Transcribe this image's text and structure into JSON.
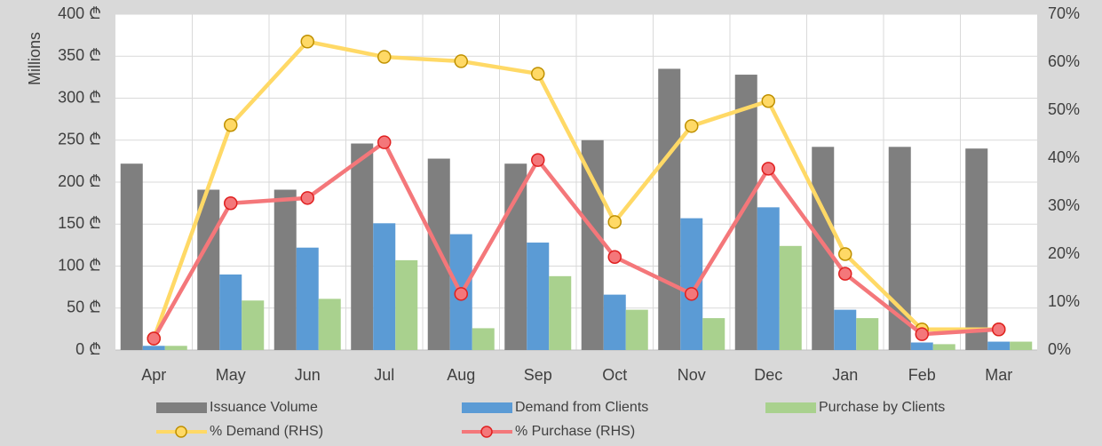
{
  "chart_data": {
    "type": "bar_line",
    "y_label": "Millions",
    "categories": [
      "Apr",
      "May",
      "Jun",
      "Jul",
      "Aug",
      "Sep",
      "Oct",
      "Nov",
      "Dec",
      "Jan",
      "Feb",
      "Mar"
    ],
    "series": [
      {
        "name": "Issuance Volume",
        "type": "bar",
        "color": "#7f7f7f",
        "values": [
          222,
          191,
          191,
          246,
          228,
          222,
          250,
          335,
          328,
          242,
          242,
          240
        ]
      },
      {
        "name": "Demand from Clients",
        "type": "bar",
        "color": "#5b9bd5",
        "values": [
          5,
          90,
          122,
          151,
          138,
          128,
          66,
          157,
          170,
          48,
          9,
          10
        ]
      },
      {
        "name": "Purchase by Clients",
        "type": "bar",
        "color": "#a9d18e",
        "values": [
          5,
          59,
          61,
          107,
          26,
          88,
          48,
          38,
          124,
          38,
          7,
          10
        ]
      },
      {
        "name": "% Demand (RHS)",
        "type": "line",
        "axis": "y2",
        "color": "#ffd966",
        "marker_stroke": "#bf9000",
        "values": [
          2.4,
          46.9,
          64.3,
          61.1,
          60.2,
          57.6,
          26.7,
          46.7,
          51.9,
          20,
          4.3,
          4.3
        ]
      },
      {
        "name": "% Purchase (RHS)",
        "type": "line",
        "axis": "y2",
        "color": "#f4777a",
        "marker_stroke": "#e02020",
        "values": [
          2.4,
          30.6,
          31.7,
          43.3,
          11.7,
          39.6,
          19.4,
          11.7,
          37.8,
          15.9,
          3.3,
          4.3
        ]
      }
    ],
    "ylim": [
      0,
      400
    ],
    "yticks": [
      {
        "value": 0,
        "label": "0 ₾"
      },
      {
        "value": 50,
        "label": "50 ₾"
      },
      {
        "value": 100,
        "label": "100 ₾"
      },
      {
        "value": 150,
        "label": "150 ₾"
      },
      {
        "value": 200,
        "label": "200 ₾"
      },
      {
        "value": 250,
        "label": "250 ₾"
      },
      {
        "value": 300,
        "label": "300 ₾"
      },
      {
        "value": 350,
        "label": "350 ₾"
      },
      {
        "value": 400,
        "label": "400 ₾"
      }
    ],
    "y2lim": [
      0,
      70
    ],
    "y2ticks": [
      {
        "value": 0,
        "label": "0%"
      },
      {
        "value": 10,
        "label": "10%"
      },
      {
        "value": 20,
        "label": "20%"
      },
      {
        "value": 30,
        "label": "30%"
      },
      {
        "value": 40,
        "label": "40%"
      },
      {
        "value": 50,
        "label": "50%"
      },
      {
        "value": 60,
        "label": "60%"
      },
      {
        "value": 70,
        "label": "70%"
      }
    ],
    "grid": true
  }
}
